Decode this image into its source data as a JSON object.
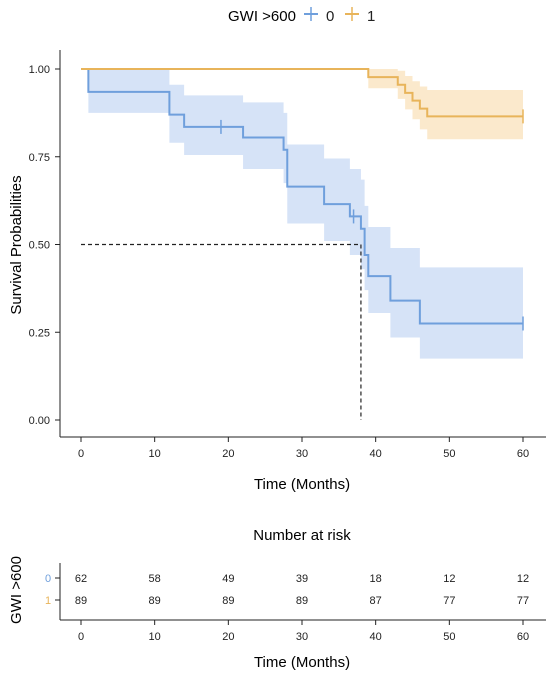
{
  "chart_data": [
    {
      "type": "line",
      "subtype": "kaplan-meier",
      "xlabel": "Time (Months)",
      "ylabel": "Survival Probabilities",
      "legend_title": "GWI >600",
      "legend_position": "top",
      "xlim": [
        0,
        60
      ],
      "ylim": [
        0,
        1
      ],
      "xticks": [
        "0",
        "10",
        "20",
        "30",
        "40",
        "50",
        "60"
      ],
      "yticks": [
        "0.00",
        "0.25",
        "0.50",
        "0.75",
        "1.00"
      ],
      "grid": false,
      "median_line": {
        "y": 0.5,
        "x": 38
      },
      "series": [
        {
          "name": "0",
          "color": "#6f9fdc",
          "band_color": "#d6e3f7",
          "steps": [
            [
              0,
              1.0
            ],
            [
              1,
              0.935
            ],
            [
              12,
              0.87
            ],
            [
              14,
              0.835
            ],
            [
              22,
              0.805
            ],
            [
              27.5,
              0.77
            ],
            [
              28,
              0.665
            ],
            [
              33,
              0.615
            ],
            [
              36.5,
              0.58
            ],
            [
              38,
              0.545
            ],
            [
              38.5,
              0.47
            ],
            [
              39,
              0.41
            ],
            [
              42,
              0.34
            ],
            [
              46,
              0.275
            ],
            [
              60,
              0.275
            ]
          ],
          "lower": [
            [
              0,
              1.0
            ],
            [
              1,
              0.875
            ],
            [
              12,
              0.79
            ],
            [
              14,
              0.755
            ],
            [
              22,
              0.715
            ],
            [
              27.5,
              0.675
            ],
            [
              28,
              0.56
            ],
            [
              33,
              0.51
            ],
            [
              36.5,
              0.47
            ],
            [
              38,
              0.43
            ],
            [
              38.5,
              0.37
            ],
            [
              39,
              0.305
            ],
            [
              42,
              0.235
            ],
            [
              46,
              0.175
            ],
            [
              60,
              0.175
            ]
          ],
          "upper": [
            [
              0,
              1.0
            ],
            [
              1,
              1.0
            ],
            [
              12,
              0.955
            ],
            [
              14,
              0.925
            ],
            [
              22,
              0.905
            ],
            [
              27.5,
              0.875
            ],
            [
              28,
              0.785
            ],
            [
              33,
              0.745
            ],
            [
              36.5,
              0.715
            ],
            [
              38,
              0.685
            ],
            [
              38.5,
              0.61
            ],
            [
              39,
              0.55
            ],
            [
              42,
              0.49
            ],
            [
              46,
              0.435
            ],
            [
              60,
              0.435
            ]
          ],
          "censored": [
            [
              19,
              0.835
            ],
            [
              37,
              0.58
            ],
            [
              60,
              0.275
            ]
          ]
        },
        {
          "name": "1",
          "color": "#e8b45a",
          "band_color": "#fbe9cc",
          "steps": [
            [
              0,
              1.0
            ],
            [
              39,
              0.977
            ],
            [
              43,
              0.955
            ],
            [
              44,
              0.932
            ],
            [
              45,
              0.91
            ],
            [
              46,
              0.887
            ],
            [
              47,
              0.865
            ],
            [
              60,
              0.865
            ]
          ],
          "lower": [
            [
              0,
              1.0
            ],
            [
              39,
              0.945
            ],
            [
              43,
              0.915
            ],
            [
              44,
              0.885
            ],
            [
              45,
              0.857
            ],
            [
              46,
              0.828
            ],
            [
              47,
              0.8
            ],
            [
              60,
              0.8
            ]
          ],
          "upper": [
            [
              0,
              1.0
            ],
            [
              39,
              1.0
            ],
            [
              43,
              0.995
            ],
            [
              44,
              0.98
            ],
            [
              45,
              0.965
            ],
            [
              46,
              0.95
            ],
            [
              47,
              0.94
            ],
            [
              60,
              0.94
            ]
          ],
          "censored": [
            [
              60,
              0.865
            ]
          ]
        }
      ]
    },
    {
      "type": "table",
      "title": "Number at risk",
      "ylabel": "GWI >600",
      "xlabel": "Time (Months)",
      "xticks": [
        "0",
        "10",
        "20",
        "30",
        "40",
        "50",
        "60"
      ],
      "rows": [
        {
          "strata": "0",
          "color": "#6f9fdc",
          "values": [
            "62",
            "58",
            "49",
            "39",
            "18",
            "12",
            "12"
          ]
        },
        {
          "strata": "1",
          "color": "#e8b45a",
          "values": [
            "89",
            "89",
            "89",
            "89",
            "87",
            "77",
            "77"
          ]
        }
      ]
    }
  ]
}
